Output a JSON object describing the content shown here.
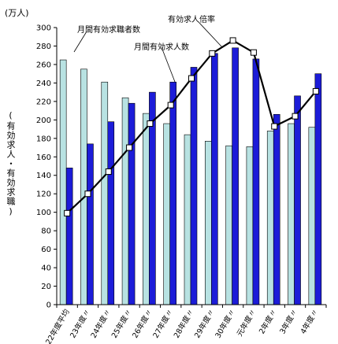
{
  "chart_data": {
    "type": "bar",
    "unit_label": "(万人)",
    "ylabel": "(有効求人・有効求職)",
    "ylim": [
      0,
      300
    ],
    "yticks": [
      0,
      20,
      40,
      60,
      80,
      100,
      120,
      140,
      160,
      180,
      200,
      220,
      240,
      260,
      280,
      300
    ],
    "categories": [
      "22年度平均",
      "23年度〃",
      "24年度〃",
      "25年度〃",
      "26年度〃",
      "27年度〃",
      "28年度〃",
      "29年度〃",
      "30年度〃",
      "元年度〃",
      "2年度〃",
      "3年度〃",
      "4年度〃"
    ],
    "series": [
      {
        "name": "月間有効求職者数",
        "kind": "bar",
        "color": "#b8e2e2",
        "values": [
          265,
          255,
          241,
          224,
          207,
          196,
          184,
          177,
          172,
          171,
          188,
          196,
          192
        ]
      },
      {
        "name": "月間有効求人数",
        "kind": "bar",
        "color": "#1c1cd8",
        "values": [
          148,
          174,
          198,
          218,
          230,
          241,
          257,
          272,
          278,
          266,
          206,
          226,
          250
        ]
      },
      {
        "name": "有効求人倍率",
        "kind": "line",
        "color": "#000000",
        "values": [
          99,
          120,
          144,
          170,
          196,
          216,
          245,
          272,
          286,
          273,
          193,
          204,
          231
        ]
      }
    ],
    "legend_placement": "annotations inside plot, top"
  }
}
